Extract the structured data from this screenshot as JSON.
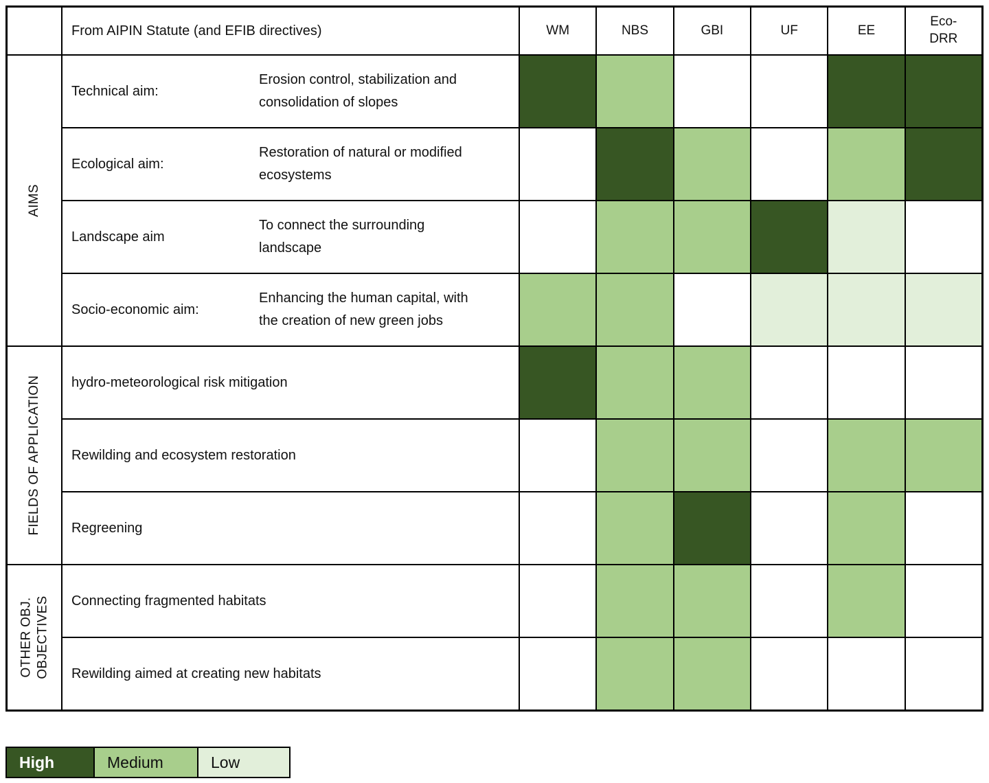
{
  "table": {
    "corner": "",
    "statute_header": "From AIPIN Statute (and EFIB directives)",
    "columns": [
      {
        "label": "WM"
      },
      {
        "label": "NBS"
      },
      {
        "label": "GBI"
      },
      {
        "label": "UF"
      },
      {
        "label": "EE"
      },
      {
        "label": "Eco-\nDRR"
      }
    ],
    "groups": [
      {
        "label": "AIMS",
        "rows": [
          {
            "aim": "Technical aim:",
            "desc": "Erosion control, stabilization and consolidation of slopes",
            "cells": [
              "high",
              "medium",
              "none",
              "none",
              "high",
              "high"
            ]
          },
          {
            "aim": "Ecological aim:",
            "desc": "Restoration of natural or modified ecosystems",
            "cells": [
              "none",
              "high",
              "medium",
              "none",
              "medium",
              "high"
            ]
          },
          {
            "aim": "Landscape aim",
            "desc": "To connect the surrounding landscape",
            "cells": [
              "none",
              "medium",
              "medium",
              "high",
              "low",
              "none"
            ]
          },
          {
            "aim": "Socio-economic aim:",
            "desc": "Enhancing the human capital, with the creation of new green jobs",
            "cells": [
              "medium",
              "medium",
              "none",
              "low",
              "low",
              "low"
            ]
          }
        ]
      },
      {
        "label": "FIELDS OF APPLICATION",
        "rows": [
          {
            "label": "hydro-meteorological risk mitigation",
            "cells": [
              "high",
              "medium",
              "medium",
              "none",
              "none",
              "none"
            ]
          },
          {
            "label": "Rewilding and ecosystem restoration",
            "cells": [
              "none",
              "medium",
              "medium",
              "none",
              "medium",
              "medium"
            ]
          },
          {
            "label": "Regreening",
            "cells": [
              "none",
              "medium",
              "high",
              "none",
              "medium",
              "none"
            ]
          }
        ]
      },
      {
        "label": "OTHER OBJ.\nOBJECTIVES",
        "rows": [
          {
            "label": "Connecting fragmented habitats",
            "cells": [
              "none",
              "medium",
              "medium",
              "none",
              "medium",
              "none"
            ]
          },
          {
            "label": "Rewilding aimed at creating new habitats",
            "cells": [
              "none",
              "medium",
              "medium",
              "none",
              "none",
              "none"
            ]
          }
        ]
      }
    ]
  },
  "legend": {
    "items": [
      {
        "label": "High",
        "level": "high"
      },
      {
        "label": "Medium",
        "level": "medium"
      },
      {
        "label": "Low",
        "level": "low"
      }
    ]
  },
  "colors": {
    "high": "#375623",
    "medium": "#A8CE8C",
    "low": "#E2EFDA",
    "none": "#FFFFFF"
  },
  "chart_data": {
    "type": "heatmap",
    "title": "From AIPIN Statute (and EFIB directives)",
    "columns": [
      "WM",
      "NBS",
      "GBI",
      "UF",
      "EE",
      "Eco-DRR"
    ],
    "value_scale": {
      "High": "#375623",
      "Medium": "#A8CE8C",
      "Low": "#E2EFDA",
      "blank": "#FFFFFF"
    },
    "legend_position": "bottom-left",
    "rows": [
      {
        "group": "AIMS",
        "label": "Technical aim: Erosion control, stabilization and consolidation of slopes",
        "values": [
          "High",
          "Medium",
          null,
          null,
          "High",
          "High"
        ]
      },
      {
        "group": "AIMS",
        "label": "Ecological aim: Restoration of natural or modified ecosystems",
        "values": [
          null,
          "High",
          "Medium",
          null,
          "Medium",
          "High"
        ]
      },
      {
        "group": "AIMS",
        "label": "Landscape aim: To connect the surrounding landscape",
        "values": [
          null,
          "Medium",
          "Medium",
          "High",
          "Low",
          null
        ]
      },
      {
        "group": "AIMS",
        "label": "Socio-economic aim: Enhancing the human capital, with the creation of new green jobs",
        "values": [
          "Medium",
          "Medium",
          null,
          "Low",
          "Low",
          "Low"
        ]
      },
      {
        "group": "FIELDS OF APPLICATION",
        "label": "hydro-meteorological risk mitigation",
        "values": [
          "High",
          "Medium",
          "Medium",
          null,
          null,
          null
        ]
      },
      {
        "group": "FIELDS OF APPLICATION",
        "label": "Rewilding and ecosystem restoration",
        "values": [
          null,
          "Medium",
          "Medium",
          null,
          "Medium",
          "Medium"
        ]
      },
      {
        "group": "FIELDS OF APPLICATION",
        "label": "Regreening",
        "values": [
          null,
          "Medium",
          "High",
          null,
          "Medium",
          null
        ]
      },
      {
        "group": "OTHER OBJ. OBJECTIVES",
        "label": "Connecting fragmented habitats",
        "values": [
          null,
          "Medium",
          "Medium",
          null,
          "Medium",
          null
        ]
      },
      {
        "group": "OTHER OBJ. OBJECTIVES",
        "label": "Rewilding aimed at creating new habitats",
        "values": [
          null,
          "Medium",
          "Medium",
          null,
          null,
          null
        ]
      }
    ]
  }
}
